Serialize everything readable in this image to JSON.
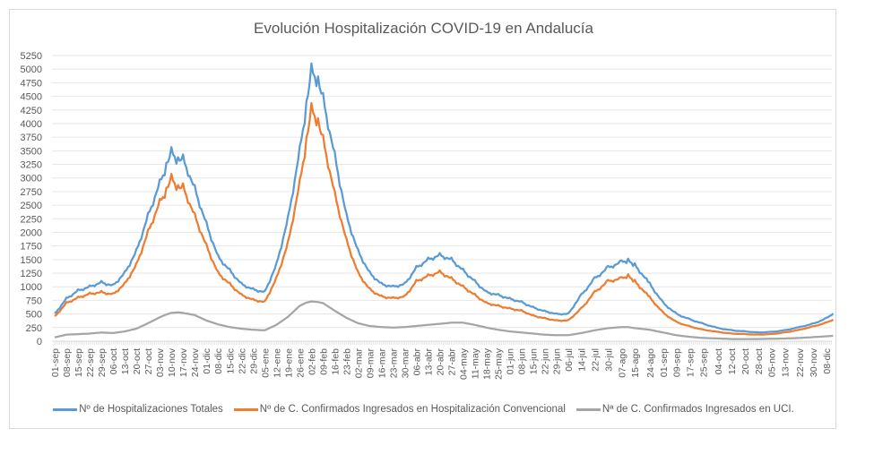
{
  "chart_data": {
    "type": "line",
    "title": "Evolución Hospitalización COVID-19 en Andalucía",
    "xlabel": "",
    "ylabel": "",
    "ylim": [
      0,
      5250
    ],
    "yticks": [
      0,
      250,
      500,
      750,
      1000,
      1250,
      1500,
      1750,
      2000,
      2250,
      2500,
      2750,
      3000,
      3250,
      3500,
      3750,
      4000,
      4250,
      4500,
      4750,
      5000,
      5250
    ],
    "grid": true,
    "legend_position": "bottom",
    "x_tick_labels": [
      "01-sep",
      "08-sep",
      "15-sep",
      "22-sep",
      "29-sep",
      "06-oct",
      "13-oct",
      "20-oct",
      "27-oct",
      "03-nov",
      "10-nov",
      "17-nov",
      "24-nov",
      "01-dic",
      "08-dic",
      "15-dic",
      "22-dic",
      "29-dic",
      "05-ene",
      "12-ene",
      "19-ene",
      "26-ene",
      "02-feb",
      "09-feb",
      "16-feb",
      "23-feb",
      "02-mar",
      "09-mar",
      "16-mar",
      "23-mar",
      "30-mar",
      "06-abr",
      "13-abr",
      "20-abr",
      "27-abr",
      "04-may",
      "11-may",
      "18-may",
      "25-may",
      "01-jun",
      "08-jun",
      "15-jun",
      "22-jun",
      "29-jun",
      "06-jul",
      "14-jul",
      "22-jul",
      "30-jul",
      "07-ago",
      "15-ago",
      "24-ago",
      "01-sep",
      "09-sep",
      "17-sep",
      "25-sep",
      "04-oct",
      "12-oct",
      "20-oct",
      "28-oct",
      "05-nov",
      "13-nov",
      "22-nov",
      "30-nov",
      "08-dic"
    ],
    "x": [
      "01-sep",
      "08-sep",
      "15-sep",
      "22-sep",
      "29-sep",
      "06-oct",
      "13-oct",
      "20-oct",
      "27-oct",
      "03-nov",
      "07-nov",
      "10-nov",
      "14-nov",
      "17-nov",
      "24-nov",
      "01-dic",
      "08-dic",
      "15-dic",
      "22-dic",
      "29-dic",
      "05-ene",
      "12-ene",
      "19-ene",
      "26-ene",
      "30-ene",
      "02-feb",
      "06-feb",
      "09-feb",
      "16-feb",
      "23-feb",
      "02-mar",
      "09-mar",
      "16-mar",
      "23-mar",
      "30-mar",
      "06-abr",
      "13-abr",
      "20-abr",
      "27-abr",
      "04-may",
      "11-may",
      "18-may",
      "25-may",
      "01-jun",
      "08-jun",
      "15-jun",
      "22-jun",
      "29-jun",
      "06-jul",
      "14-jul",
      "22-jul",
      "30-jul",
      "07-ago",
      "11-ago",
      "15-ago",
      "24-ago",
      "01-sep",
      "09-sep",
      "17-sep",
      "25-sep",
      "04-oct",
      "12-oct",
      "20-oct",
      "28-oct",
      "05-nov",
      "13-nov",
      "22-nov",
      "30-nov",
      "08-dic",
      "12-dic"
    ],
    "series": [
      {
        "name": "Nº de Hospitalizaciones Totales",
        "color": "#5b9bd5",
        "values": [
          500,
          780,
          930,
          1000,
          1080,
          1020,
          1250,
          1650,
          2300,
          2900,
          3200,
          3480,
          3300,
          3350,
          2800,
          2150,
          1550,
          1300,
          1050,
          950,
          900,
          1400,
          2250,
          3500,
          4300,
          4980,
          4750,
          4450,
          3400,
          2300,
          1650,
          1250,
          1050,
          1000,
          1050,
          1350,
          1500,
          1580,
          1500,
          1300,
          1100,
          900,
          850,
          780,
          720,
          620,
          550,
          500,
          500,
          850,
          1150,
          1350,
          1450,
          1480,
          1400,
          1050,
          700,
          500,
          400,
          320,
          240,
          200,
          180,
          160,
          170,
          200,
          260,
          320,
          420,
          510
        ]
      },
      {
        "name": "Nº de C. Confirmados Ingresados en Hospitalización Convencional",
        "color": "#ed7d31",
        "values": [
          450,
          700,
          800,
          870,
          900,
          860,
          1050,
          1400,
          2000,
          2550,
          2750,
          3000,
          2800,
          2830,
          2300,
          1750,
          1250,
          1050,
          850,
          760,
          720,
          1150,
          1800,
          2900,
          3650,
          4270,
          4000,
          3700,
          2700,
          1850,
          1250,
          950,
          820,
          790,
          820,
          1100,
          1200,
          1270,
          1150,
          1000,
          850,
          700,
          650,
          600,
          560,
          470,
          420,
          380,
          380,
          600,
          900,
          1100,
          1150,
          1200,
          1100,
          800,
          520,
          350,
          270,
          210,
          170,
          140,
          130,
          120,
          130,
          160,
          210,
          270,
          340,
          400
        ]
      },
      {
        "name": "Nª de C. Confirmados Ingresados en UCI.",
        "color": "#a5a5a5",
        "values": [
          70,
          120,
          130,
          140,
          160,
          150,
          180,
          230,
          330,
          440,
          490,
          520,
          530,
          520,
          480,
          380,
          310,
          260,
          230,
          210,
          200,
          300,
          450,
          650,
          710,
          730,
          720,
          700,
          560,
          430,
          330,
          280,
          260,
          250,
          260,
          280,
          300,
          320,
          340,
          340,
          300,
          250,
          210,
          180,
          160,
          140,
          120,
          110,
          110,
          150,
          200,
          240,
          260,
          260,
          240,
          210,
          160,
          110,
          80,
          60,
          50,
          40,
          40,
          40,
          45,
          50,
          60,
          75,
          90,
          100
        ]
      }
    ]
  }
}
